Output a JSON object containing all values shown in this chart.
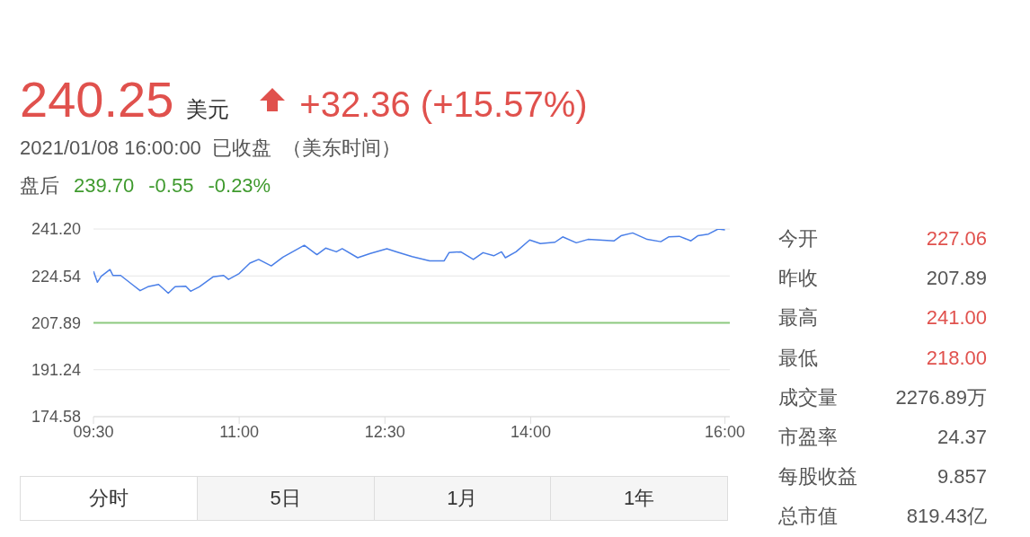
{
  "chart_data": {
    "type": "line",
    "title": "240.25",
    "annotations": [
      "美元",
      "+32.36 (+15.57%)",
      "2021/01/08 16:00:00  已收盘  （美东时间）",
      "盘后",
      "239.70",
      "-0.55",
      "-0.23%",
      "今开",
      "227.06",
      "昨收",
      "207.89",
      "最高",
      "241.00",
      "最低",
      "218.00",
      "成交量",
      "2276.89万",
      "市盈率",
      "24.37",
      "每股收益",
      "9.857",
      "总市值",
      "819.43亿",
      "分时",
      "5日",
      "1月",
      "1年"
    ],
    "x": [
      9.5,
      9.54,
      9.58,
      9.67,
      9.7,
      9.78,
      9.91,
      9.98,
      10.06,
      10.17,
      10.27,
      10.34,
      10.45,
      10.5,
      10.59,
      10.73,
      10.84,
      10.89,
      11.0,
      11.11,
      11.2,
      11.33,
      11.45,
      11.55,
      11.67,
      11.8,
      11.89,
      12.0,
      12.06,
      12.22,
      12.35,
      12.52,
      12.62,
      12.78,
      12.96,
      13.11,
      13.16,
      13.28,
      13.41,
      13.51,
      13.62,
      13.7,
      13.74,
      13.85,
      13.99,
      14.1,
      14.25,
      14.33,
      14.47,
      14.59,
      14.86,
      14.93,
      15.05,
      15.2,
      15.34,
      15.42,
      15.53,
      15.65,
      15.72,
      15.83,
      15.93,
      16.0
    ],
    "series": [
      {
        "color": "#4a7fe8",
        "values": [
          226.2,
          222.3,
          224.4,
          226.8,
          224.7,
          224.7,
          221.2,
          219.3,
          220.7,
          221.5,
          218.4,
          220.7,
          220.9,
          219.1,
          220.7,
          224.2,
          224.7,
          223.3,
          225.4,
          229.1,
          230.4,
          228.1,
          231.2,
          233.1,
          235.4,
          232.1,
          234.4,
          233.1,
          234.2,
          231.0,
          232.5,
          234.2,
          233.1,
          231.4,
          229.9,
          229.9,
          232.8,
          233.1,
          230.4,
          232.8,
          231.7,
          233.1,
          231.0,
          233.1,
          237.3,
          236.0,
          236.5,
          238.4,
          236.3,
          237.5,
          237.0,
          238.8,
          239.8,
          237.5,
          236.7,
          238.4,
          238.6,
          237.0,
          238.8,
          239.4,
          241.2,
          240.9
        ]
      }
    ],
    "xlim": [
      9.5,
      16.05
    ],
    "xticks": [
      {
        "value": 9.5,
        "label": "09:30"
      },
      {
        "value": 11,
        "label": "11:00"
      },
      {
        "value": 12.5,
        "label": "12:30"
      },
      {
        "value": 14,
        "label": "14:00"
      },
      {
        "value": 16,
        "label": "16:00"
      }
    ],
    "ylim": [
      174.58,
      241.2
    ],
    "yticks": [
      174.58,
      191.24,
      207.89,
      224.54,
      {
        "value": 241.2,
        "label": "241.20"
      }
    ],
    "ref_lines": [
      {
        "axis": "y",
        "value": 207.89,
        "color": "#8cc97f"
      }
    ],
    "grid": "y",
    "legend": false,
    "marker": "none",
    "line_style": "solid"
  }
}
